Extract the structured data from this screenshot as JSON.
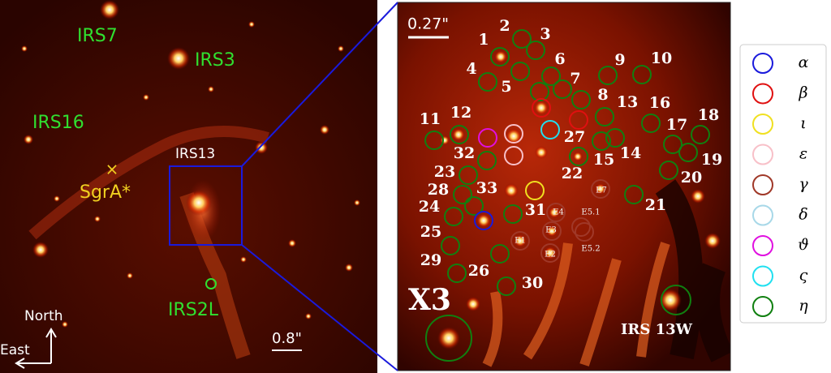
{
  "left_panel": {
    "labels": {
      "irs7": "IRS7",
      "irs3": "IRS3",
      "irs16": "IRS16",
      "sgra": "SgrA*",
      "sgra_marker": "×",
      "irs13": "IRS13",
      "irs2l": "IRS2L",
      "scale": "0.8\"",
      "north": "North",
      "east": "East"
    }
  },
  "right_panel": {
    "scale": "0.27\"",
    "numbers": [
      "1",
      "2",
      "3",
      "4",
      "5",
      "6",
      "7",
      "8",
      "9",
      "10",
      "11",
      "12",
      "13",
      "14",
      "15",
      "16",
      "17",
      "18",
      "19",
      "20",
      "21",
      "22",
      "23",
      "24",
      "25",
      "26",
      "27",
      "28",
      "29",
      "30",
      "31",
      "32",
      "33"
    ],
    "e_labels": [
      "E1",
      "E2",
      "E3",
      "E4",
      "E5.1",
      "E5.2",
      "E7"
    ],
    "x3": "X3",
    "irs13w": "IRS 13W"
  },
  "legend": {
    "items": [
      {
        "label": "α",
        "color": "#1a1adc"
      },
      {
        "label": "β",
        "color": "#e01010"
      },
      {
        "label": "ι",
        "color": "#f0e020"
      },
      {
        "label": "ε",
        "color": "#f8c0c8"
      },
      {
        "label": "γ",
        "color": "#a03828"
      },
      {
        "label": "δ",
        "color": "#a8d8e8"
      },
      {
        "label": "ϑ",
        "color": "#e010e0"
      },
      {
        "label": "ς",
        "color": "#20e0f0"
      },
      {
        "label": "η",
        "color": "#108010"
      }
    ]
  }
}
